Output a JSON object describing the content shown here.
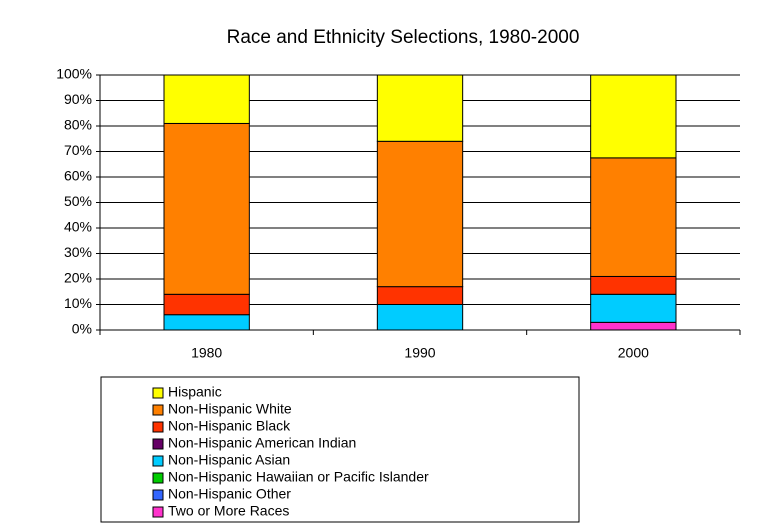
{
  "chart_data": {
    "type": "bar",
    "stacked": true,
    "title": "Race and Ethnicity Selections, 1980-2000",
    "categories": [
      "1980",
      "1990",
      "2000"
    ],
    "series": [
      {
        "name": "Hispanic",
        "color": "#ffff00",
        "values": [
          19,
          26,
          32.5
        ]
      },
      {
        "name": "Non-Hispanic White",
        "color": "#ff8000",
        "values": [
          67,
          57,
          46.5
        ]
      },
      {
        "name": "Non-Hispanic Black",
        "color": "#ff3300",
        "values": [
          8,
          7,
          7
        ]
      },
      {
        "name": "Non-Hispanic American Indian",
        "color": "#660066",
        "values": [
          0,
          0,
          0
        ]
      },
      {
        "name": "Non-Hispanic Asian",
        "color": "#00ccff",
        "values": [
          6,
          10,
          11
        ]
      },
      {
        "name": "Non-Hispanic Hawaiian or Pacific Islander",
        "color": "#00cc00",
        "values": [
          0,
          0,
          0
        ]
      },
      {
        "name": "Non-Hispanic Other",
        "color": "#3366ff",
        "values": [
          0,
          0,
          0
        ]
      },
      {
        "name": "Two or More Races",
        "color": "#ff33cc",
        "values": [
          0,
          0,
          3
        ]
      }
    ],
    "ylim": [
      0,
      100
    ],
    "yticks": [
      {
        "value": 0,
        "label": "0%"
      },
      {
        "value": 10,
        "label": "10%"
      },
      {
        "value": 20,
        "label": "20%"
      },
      {
        "value": 30,
        "label": "30%"
      },
      {
        "value": 40,
        "label": "40%"
      },
      {
        "value": 50,
        "label": "50%"
      },
      {
        "value": 60,
        "label": "60%"
      },
      {
        "value": 70,
        "label": "70%"
      },
      {
        "value": 80,
        "label": "80%"
      },
      {
        "value": 90,
        "label": "90%"
      },
      {
        "value": 100,
        "label": "100%"
      }
    ],
    "grid": true
  }
}
